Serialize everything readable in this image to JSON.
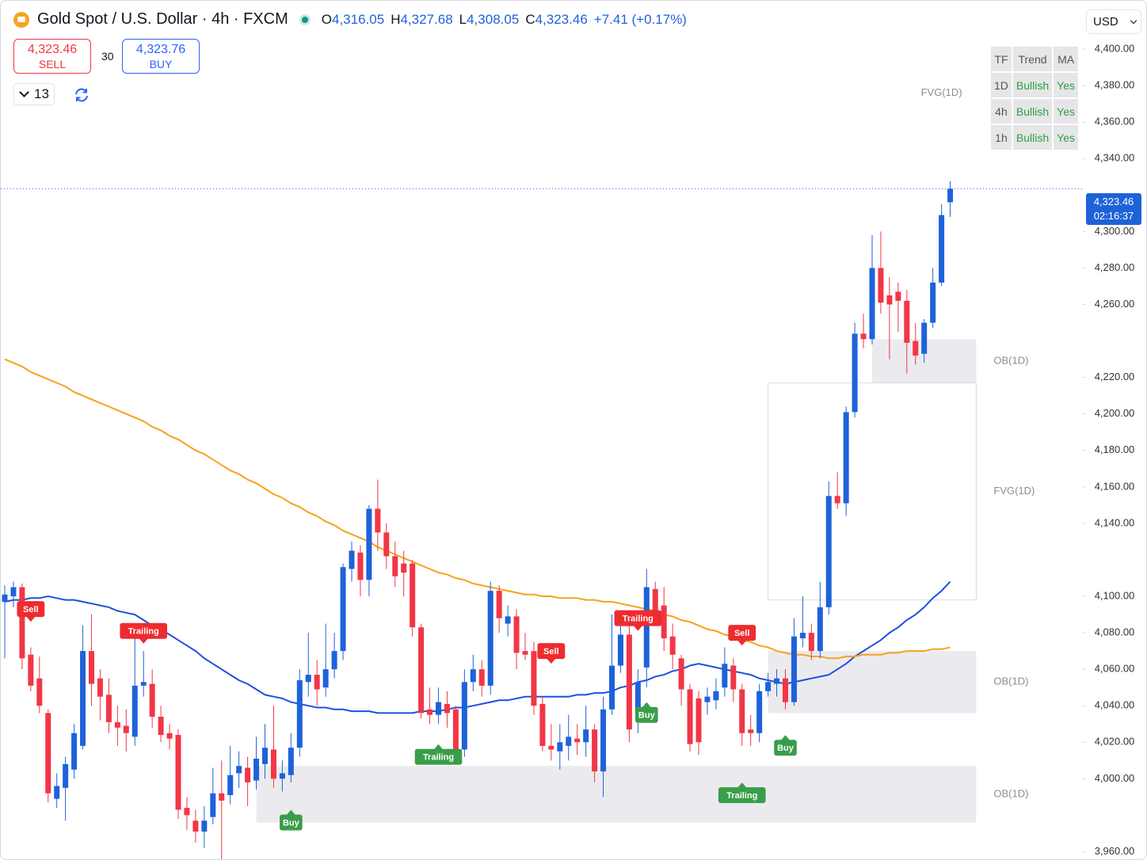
{
  "header": {
    "symbol": "Gold Spot / U.S. Dollar · 4h · FXCM",
    "o_label": "O",
    "open": "4,316.05",
    "h_label": "H",
    "high": "4,327.68",
    "l_label": "L",
    "low": "4,308.05",
    "c_label": "C",
    "close": "4,323.46",
    "change": "+7.41 (+0.17%)"
  },
  "trade": {
    "sell_price": "4,323.46",
    "sell_label": "SELL",
    "spread": 30,
    "buy_price": "4,323.76",
    "buy_label": "BUY"
  },
  "indicators_count": 13,
  "currency": "USD",
  "trend_table": {
    "header": [
      "TF",
      "Trend",
      "MA"
    ],
    "rows": [
      [
        "1D",
        "Bullish",
        "Yes"
      ],
      [
        "4h",
        "Bullish",
        "Yes"
      ],
      [
        "1h",
        "Bullish",
        "Yes"
      ]
    ]
  },
  "chart_data": {
    "type": "candlestick",
    "up_color": "#1e62d9",
    "down_color": "#f23645",
    "open": [
      4097,
      4100,
      4105,
      4068,
      4055,
      4036,
      3989,
      3995,
      4005,
      4018,
      4070,
      4055,
      4046,
      4031,
      4029,
      4023,
      4051,
      4052,
      4034,
      4025,
      4024,
      3984,
      3977,
      3971,
      3979,
      3992,
      3991,
      4003,
      4006,
      3999,
      4008,
      4016,
      4000,
      4002,
      4017,
      4053,
      4057,
      4050,
      4060,
      4070,
      4115,
      4124,
      4109,
      4148,
      4135,
      4122,
      4118,
      4118,
      4083,
      4038,
      4035,
      4041,
      4038,
      4016,
      4053,
      4060,
      4051,
      4103,
      4085,
      4089,
      4070,
      4070,
      4041,
      4018,
      4015,
      4018,
      4022,
      4020,
      4027,
      4004,
      4038,
      4062,
      4079,
      4035,
      4061,
      4104,
      4095,
      4078,
      4066,
      4049,
      4044,
      4042,
      4043,
      4050,
      4062,
      4049,
      4027,
      4025,
      4048,
      4052,
      4055,
      4042,
      4077,
      4080,
      4070,
      4094,
      4155,
      4151,
      4201,
      4244,
      4241,
      4280,
      4265,
      4267,
      4262,
      4240,
      4233,
      4250,
      4272,
      4316.05
    ],
    "high": [
      4106,
      4108,
      4107,
      4072,
      4067,
      4038,
      4003,
      4012,
      4030,
      4084,
      4090,
      4060,
      4055,
      4040,
      4038,
      4080,
      4070,
      4060,
      4040,
      4030,
      4027,
      3990,
      3983,
      3985,
      4006,
      4010,
      4018,
      4015,
      4012,
      4023,
      4030,
      4040,
      4010,
      4025,
      4060,
      4080,
      4065,
      4085,
      4080,
      4118,
      4130,
      4128,
      4150,
      4164,
      4140,
      4130,
      4125,
      4120,
      4085,
      4050,
      4050,
      4048,
      4040,
      4060,
      4068,
      4065,
      4108,
      4106,
      4095,
      4093,
      4080,
      4075,
      4045,
      4030,
      4030,
      4035,
      4030,
      4040,
      4030,
      4045,
      4090,
      4092,
      4085,
      4060,
      4115,
      4108,
      4105,
      4085,
      4068,
      4052,
      4048,
      4050,
      4055,
      4072,
      4066,
      4052,
      4035,
      4052,
      4058,
      4060,
      4060,
      4088,
      4100,
      4085,
      4108,
      4163,
      4168,
      4204,
      4250,
      4255,
      4298,
      4300,
      4275,
      4272,
      4268,
      4250,
      4252,
      4280,
      4315,
      4327.68
    ],
    "low": [
      4066,
      4094,
      4060,
      4048,
      4036,
      3987,
      3984,
      3977,
      4000,
      4016,
      4040,
      4032,
      4025,
      4018,
      4015,
      4018,
      4045,
      4028,
      4020,
      4016,
      3978,
      3972,
      3965,
      3962,
      3975,
      3955,
      3986,
      3995,
      3985,
      3994,
      4000,
      3995,
      3993,
      3998,
      4012,
      4045,
      4040,
      4045,
      4055,
      4065,
      4108,
      4100,
      4100,
      4125,
      4115,
      4105,
      4100,
      4078,
      4033,
      4030,
      4030,
      4028,
      4012,
      4012,
      4048,
      4045,
      4046,
      4080,
      4078,
      4060,
      4065,
      4035,
      4015,
      4010,
      4005,
      4010,
      4013,
      4012,
      3998,
      3990,
      4035,
      4058,
      4020,
      4025,
      4050,
      4085,
      4070,
      4060,
      4040,
      4015,
      4013,
      4035,
      4038,
      4045,
      4042,
      4018,
      4018,
      4020,
      4045,
      4045,
      4038,
      4040,
      4072,
      4065,
      4066,
      4090,
      4148,
      4144,
      4198,
      4236,
      4238,
      4255,
      4230,
      4245,
      4222,
      4227,
      4228,
      4247,
      4270,
      4308.05
    ],
    "close": [
      4101,
      4105,
      4066,
      4051,
      4040,
      3992,
      3996,
      4008,
      4025,
      4070,
      4052,
      4045,
      4031,
      4028,
      4025,
      4051,
      4053,
      4034,
      4024,
      4022,
      3983,
      3980,
      3971,
      3977,
      3992,
      3988,
      4002,
      4007,
      3998,
      4011,
      4017,
      4000,
      4003,
      4017,
      4054,
      4057,
      4049,
      4060,
      4070,
      4116,
      4125,
      4109,
      4148,
      4135,
      4122,
      4111,
      4113,
      4083,
      4036,
      4035,
      4042,
      4036,
      4016,
      4053,
      4060,
      4051,
      4103,
      4088,
      4089,
      4069,
      4068,
      4040,
      4018,
      4016,
      4020,
      4023,
      4020,
      4027,
      4004,
      4038,
      4062,
      4079,
      4027,
      4053,
      4105,
      4088,
      4077,
      4068,
      4049,
      4019,
      4020,
      4045,
      4048,
      4063,
      4049,
      4025,
      4025,
      4048,
      4053,
      4055,
      4042,
      4078,
      4080,
      4070,
      4094,
      4155,
      4151,
      4201,
      4244,
      4241,
      4280,
      4261,
      4260,
      4262,
      4239,
      4232,
      4250,
      4272,
      4309,
      4323.46
    ],
    "series": [
      {
        "color": "#1f4fe0",
        "values": [
          4097,
          4098,
          4098,
          4099,
          4099,
          4100,
          4099,
          4098,
          4098,
          4097,
          4096,
          4095,
          4094,
          4092,
          4091,
          4090,
          4087,
          4084,
          4082,
          4079,
          4076,
          4073,
          4070,
          4066,
          4063,
          4060,
          4057,
          4054,
          4052,
          4049,
          4046,
          4045,
          4044,
          4042,
          4041,
          4040,
          4039,
          4039,
          4038,
          4038,
          4037,
          4037,
          4037,
          4036,
          4036,
          4036,
          4036,
          4036,
          4037,
          4037,
          4037,
          4038,
          4039,
          4039,
          4040,
          4041,
          4042,
          4043,
          4043,
          4044,
          4045,
          4045,
          4045,
          4045,
          4045,
          4045,
          4046,
          4046,
          4047,
          4047,
          4048,
          4050,
          4051,
          4053,
          4054,
          4056,
          4057,
          4059,
          4060,
          4062,
          4063,
          4062,
          4061,
          4060,
          4059,
          4058,
          4057,
          4055,
          4054,
          4053,
          4052,
          4053,
          4054,
          4055,
          4056,
          4057,
          4060,
          4063,
          4067,
          4070,
          4073,
          4076,
          4080,
          4083,
          4087,
          4090,
          4094,
          4099,
          4103,
          4108
        ]
      },
      {
        "color": "#f7a21b",
        "values": [
          4230,
          4228,
          4226,
          4223,
          4221,
          4219,
          4217,
          4215,
          4212,
          4210,
          4208,
          4206,
          4204,
          4202,
          4200,
          4198,
          4196,
          4193,
          4191,
          4188,
          4186,
          4183,
          4180,
          4178,
          4175,
          4172,
          4169,
          4167,
          4164,
          4162,
          4159,
          4156,
          4154,
          4151,
          4149,
          4146,
          4144,
          4141,
          4139,
          4136,
          4134,
          4132,
          4130,
          4127,
          4125,
          4123,
          4121,
          4119,
          4117,
          4115,
          4113,
          4112,
          4110,
          4109,
          4107,
          4106,
          4105,
          4104,
          4103,
          4102,
          4101,
          4101,
          4100,
          4100,
          4099,
          4099,
          4099,
          4098,
          4098,
          4097,
          4097,
          4096,
          4095,
          4094,
          4093,
          4092,
          4090,
          4089,
          4087,
          4086,
          4084,
          4082,
          4081,
          4079,
          4078,
          4076,
          4075,
          4073,
          4072,
          4070,
          4069,
          4068,
          4068,
          4067,
          4067,
          4066,
          4066,
          4067,
          4067,
          4068,
          4068,
          4068,
          4069,
          4069,
          4070,
          4070,
          4070,
          4071,
          4071,
          4072
        ]
      }
    ],
    "zones": [
      {
        "label": "OB(1D)",
        "top": 4241,
        "bottom": 4217,
        "start": 100,
        "end": 112,
        "fill": "#ebebef"
      },
      {
        "label": "FVG(1D)",
        "top": 4217,
        "bottom": 4098,
        "start": 88,
        "end": 112,
        "fill": "#ffffff"
      },
      {
        "label": "OB(1D)",
        "top": 4070,
        "bottom": 4036,
        "start": 88,
        "end": 112,
        "fill": "#ebebef"
      },
      {
        "label": "OB(1D)",
        "top": 4007,
        "bottom": 3976,
        "start": 29,
        "end": 112,
        "fill": "#ebebef"
      }
    ],
    "annotation": {
      "text": "FVG(1D)",
      "index": 108,
      "price": 4376
    },
    "signals": [
      {
        "text": "Sell",
        "side": "sell",
        "index": 3,
        "price": 4093
      },
      {
        "text": "Trailing",
        "side": "sell",
        "index": 16,
        "price": 4081
      },
      {
        "text": "Sell",
        "side": "sell",
        "index": 63,
        "price": 4070
      },
      {
        "text": "Trailing",
        "side": "sell",
        "index": 73,
        "price": 4088
      },
      {
        "text": "Sell",
        "side": "sell",
        "index": 85,
        "price": 4080
      },
      {
        "text": "Buy",
        "side": "buy",
        "index": 33,
        "price": 3976
      },
      {
        "text": "Trailing",
        "side": "buy",
        "index": 50,
        "price": 4012
      },
      {
        "text": "Buy",
        "side": "buy",
        "index": 74,
        "price": 4035
      },
      {
        "text": "Buy",
        "side": "buy",
        "index": 90,
        "price": 4017
      },
      {
        "text": "Trailing",
        "side": "buy",
        "index": 85,
        "price": 3991
      }
    ],
    "sell_color": "#ee2b2f",
    "buy_color": "#3a9d4a",
    "last_price_label": "4,323.46",
    "countdown": "02:16:37",
    "ylim": [
      3955,
      4426.5
    ],
    "yticks": [
      {
        "value": 4400,
        "label": "4,400.00"
      },
      {
        "value": 4380,
        "label": "4,380.00"
      },
      {
        "value": 4360,
        "label": "4,360.00"
      },
      {
        "value": 4340,
        "label": "4,340.00"
      },
      {
        "value": 4300,
        "label": "4,300.00"
      },
      {
        "value": 4280,
        "label": "4,280.00"
      },
      {
        "value": 4260,
        "label": "4,260.00"
      },
      {
        "value": 4220,
        "label": "4,220.00"
      },
      {
        "value": 4200,
        "label": "4,200.00"
      },
      {
        "value": 4180,
        "label": "4,180.00"
      },
      {
        "value": 4160,
        "label": "4,160.00"
      },
      {
        "value": 4140,
        "label": "4,140.00"
      },
      {
        "value": 4100,
        "label": "4,100.00"
      },
      {
        "value": 4080,
        "label": "4,080.00"
      },
      {
        "value": 4060,
        "label": "4,060.00"
      },
      {
        "value": 4040,
        "label": "4,040.00"
      },
      {
        "value": 4020,
        "label": "4,020.00"
      },
      {
        "value": 4000,
        "label": "4,000.00"
      },
      {
        "value": 3960,
        "label": "3,960.00"
      }
    ],
    "grid": false
  }
}
